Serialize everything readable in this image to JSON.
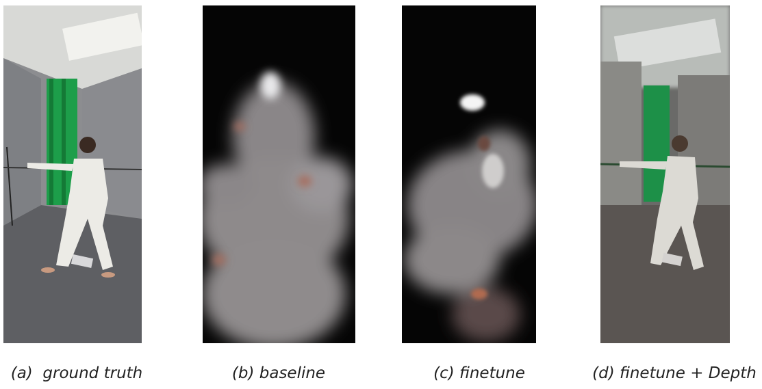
{
  "panels": [
    {
      "caption": "(a)  ground truth"
    },
    {
      "caption": "(b) baseline"
    },
    {
      "caption": "(c) finetune"
    },
    {
      "caption": "(d) finetune + Depth"
    }
  ]
}
